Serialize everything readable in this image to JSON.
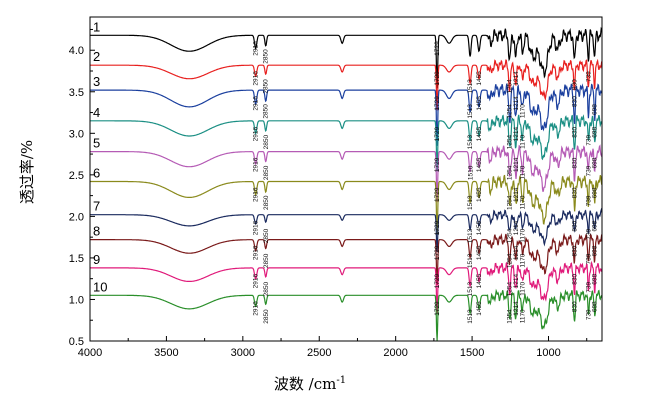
{
  "chart_data": {
    "type": "line",
    "xlabel": "波数 /cm",
    "xlabel_sup": "-1",
    "ylabel": "透过率/%",
    "xlim": [
      4000,
      650
    ],
    "ylim": [
      0.5,
      4.4
    ],
    "x_ticks": [
      "4000",
      "3500",
      "3000",
      "2500",
      "2000",
      "1500",
      "1000"
    ],
    "y_ticks": [
      "0.5",
      "1.0",
      "1.5",
      "2.0",
      "2.5",
      "3.0",
      "3.5",
      "4.0"
    ],
    "series": [
      {
        "name": "1",
        "color": "#000000",
        "baseline": 4.18,
        "depth": 1.0,
        "peaks": [
          "2916",
          "2850",
          "1729"
        ]
      },
      {
        "name": "2",
        "color": "#e8201f",
        "baseline": 3.82,
        "depth": 0.85,
        "peaks": [
          "2916",
          "2850",
          "1729",
          "1513",
          "1455",
          "1254",
          "1214",
          "830",
          "739"
        ]
      },
      {
        "name": "3",
        "color": "#1a3f9e",
        "baseline": 3.52,
        "depth": 1.05,
        "peaks": [
          "2916",
          "2850",
          "1729",
          "1513",
          "1455",
          "1254",
          "1214",
          "1170",
          "830",
          "698"
        ]
      },
      {
        "name": "4",
        "color": "#1b8f84",
        "baseline": 3.15,
        "depth": 0.95,
        "peaks": [
          "2916",
          "2850",
          "1729",
          "1513",
          "1455",
          "1254",
          "1214",
          "1170",
          "830",
          "739",
          "698"
        ]
      },
      {
        "name": "5",
        "color": "#b55bb5",
        "baseline": 2.78,
        "depth": 0.95,
        "peaks": [
          "2916",
          "2850",
          "1729",
          "1510",
          "1455",
          "1254",
          "1214",
          "1170",
          "830",
          "739",
          "698"
        ]
      },
      {
        "name": "6",
        "color": "#8a8a1c",
        "baseline": 2.42,
        "depth": 1.0,
        "peaks": [
          "2916",
          "2850",
          "1729",
          "1513",
          "1455",
          "1254",
          "1214",
          "1170",
          "830",
          "739",
          "698"
        ]
      },
      {
        "name": "7",
        "color": "#1a2a5e",
        "baseline": 2.02,
        "depth": 0.7,
        "peaks": [
          "2916",
          "2850",
          "1729",
          "1513",
          "1455",
          "1254",
          "1214",
          "1170",
          "830",
          "739",
          "698"
        ]
      },
      {
        "name": "8",
        "color": "#7a1a1a",
        "baseline": 1.72,
        "depth": 0.85,
        "peaks": [
          "2916",
          "2850",
          "1729",
          "1513",
          "1455",
          "1254",
          "1214",
          "1170",
          "830",
          "739",
          "698"
        ]
      },
      {
        "name": "9",
        "color": "#e01a7a",
        "baseline": 1.38,
        "depth": 0.85,
        "peaks": [
          "2916",
          "2850",
          "1729",
          "1513",
          "1455",
          "1254",
          "1214",
          "1170",
          "830",
          "739",
          "698"
        ]
      },
      {
        "name": "10",
        "color": "#2a8f2a",
        "baseline": 1.05,
        "depth": 0.85,
        "peaks": [
          "2916",
          "2850",
          "1729",
          "1513",
          "1455",
          "1254",
          "1214",
          "1170",
          "830",
          "739",
          "698"
        ]
      }
    ]
  }
}
